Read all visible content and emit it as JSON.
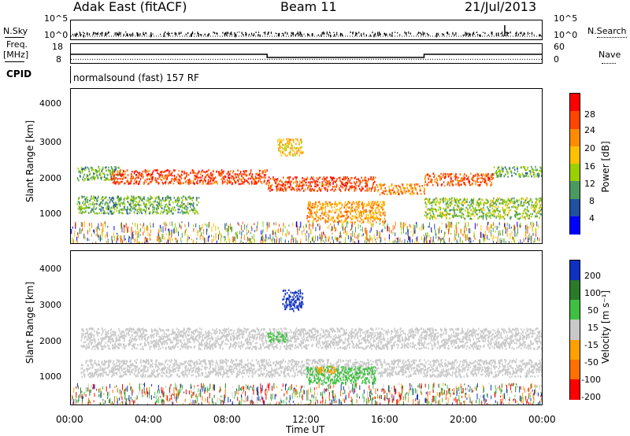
{
  "header": {
    "station": "Adak East (fitACF)",
    "beam": "Beam 11",
    "date": "21/Jul/2013"
  },
  "noise_panel": {
    "left_label": "N.Sky",
    "right_label": "N.Search",
    "left_ticks": [
      "10^5",
      "10^0"
    ],
    "right_ticks": [
      "10^5",
      "10^0"
    ]
  },
  "freq_panel": {
    "left_label_line1": "Freq.",
    "left_label_line2": "[MHz]",
    "right_label": "Nave",
    "left_ticks": [
      "18",
      "8"
    ],
    "right_ticks": [
      "60",
      "0"
    ]
  },
  "cpid": {
    "label": "CPID",
    "text": "normalsound (fast) 157 RF"
  },
  "power_panel": {
    "ylabel": "Slant Range [km]",
    "yticks": [
      "4000",
      "3000",
      "2000",
      "1000"
    ],
    "colorbar_label": "Power [dB]",
    "colorbar_ticks": [
      "28",
      "24",
      "20",
      "16",
      "12",
      "8",
      "4"
    ],
    "colorbar_colors": [
      "#ff0000",
      "#ff4400",
      "#ff8c00",
      "#ffc000",
      "#9ad000",
      "#4a9a60",
      "#2050a0",
      "#0000ff"
    ]
  },
  "velocity_panel": {
    "ylabel": "Slant Range [km]",
    "yticks": [
      "4000",
      "3000",
      "2000",
      "1000"
    ],
    "colorbar_label": "Velocity [m s⁻¹]",
    "colorbar_ticks": [
      "200",
      "100",
      "50",
      "15",
      "-15",
      "-50",
      "-100",
      "-200"
    ],
    "colorbar_colors": [
      "#1030c0",
      "#2a7a2a",
      "#40c040",
      "#c8c8c8",
      "#ffa000",
      "#ff7000",
      "#ff0000"
    ]
  },
  "xaxis": {
    "label": "Time UT",
    "ticks": [
      "00:00",
      "04:00",
      "08:00",
      "12:00",
      "16:00",
      "20:00",
      "00:00"
    ]
  },
  "chart_data": {
    "type": "heatmap",
    "title": "Adak East (fitACF)",
    "subtitle": "Beam 11",
    "date": "21/Jul/2013",
    "xlabel": "Time UT",
    "ylabel": "Slant Range [km]",
    "xlim": [
      "00:00",
      "24:00"
    ],
    "ylim": [
      180,
      4600
    ],
    "frequency_mhz": [
      {
        "start": "00:00",
        "end": "10:00",
        "value": 12.5
      },
      {
        "start": "10:00",
        "end": "18:00",
        "value": 10.5
      },
      {
        "start": "18:00",
        "end": "24:00",
        "value": 12.5
      }
    ],
    "nave": 8,
    "power_dB_regions": [
      {
        "t_start": 0.3,
        "t_end": 2.5,
        "range_start": 2000,
        "range_end": 2400,
        "power": 10
      },
      {
        "t_start": 2.0,
        "t_end": 10.0,
        "range_start": 1900,
        "range_end": 2300,
        "power": 26
      },
      {
        "t_start": 10.0,
        "t_end": 15.5,
        "range_start": 1700,
        "range_end": 2100,
        "power": 26
      },
      {
        "t_start": 15.5,
        "t_end": 18.0,
        "range_start": 1600,
        "range_end": 1900,
        "power": 22
      },
      {
        "t_start": 18.0,
        "t_end": 21.5,
        "range_start": 1850,
        "range_end": 2200,
        "power": 25
      },
      {
        "t_start": 21.5,
        "t_end": 24.0,
        "range_start": 2100,
        "range_end": 2400,
        "power": 10
      },
      {
        "t_start": 0.3,
        "t_end": 6.5,
        "range_start": 1050,
        "range_end": 1550,
        "power": 10
      },
      {
        "t_start": 12.0,
        "t_end": 16.0,
        "range_start": 800,
        "range_end": 1400,
        "power": 20
      },
      {
        "t_start": 10.5,
        "t_end": 11.8,
        "range_start": 2700,
        "range_end": 3200,
        "power": 18
      },
      {
        "t_start": 18.0,
        "t_end": 24.0,
        "range_start": 900,
        "range_end": 1500,
        "power": 12
      }
    ],
    "velocity_regions": [
      {
        "t_start": 0.5,
        "t_end": 24.0,
        "range_start": 1800,
        "range_end": 2400,
        "velocity": 0
      },
      {
        "t_start": 0.5,
        "t_end": 24.0,
        "range_start": 1000,
        "range_end": 1500,
        "velocity": 0
      },
      {
        "t_start": 10.7,
        "t_end": 11.8,
        "range_start": 2900,
        "range_end": 3500,
        "velocity": 200
      },
      {
        "t_start": 12.0,
        "t_end": 15.5,
        "range_start": 800,
        "range_end": 1300,
        "velocity": 40
      },
      {
        "t_start": 12.5,
        "t_end": 13.5,
        "range_start": 1100,
        "range_end": 1300,
        "velocity": -30
      },
      {
        "t_start": 10.0,
        "t_end": 11.0,
        "range_start": 2000,
        "range_end": 2300,
        "velocity": 40
      }
    ]
  }
}
